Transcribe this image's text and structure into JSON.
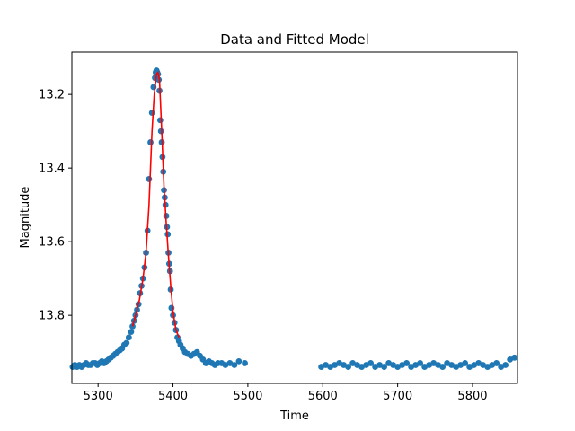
{
  "chart_data": {
    "type": "scatter",
    "title": "Data and Fitted Model",
    "xlabel": "Time",
    "ylabel": "Magnitude",
    "xlim": [
      5265,
      5860
    ],
    "ylim": [
      13.985,
      13.085
    ],
    "y_inverted": true,
    "grid": false,
    "legend": "none",
    "x_ticks": [
      5300,
      5400,
      5500,
      5600,
      5700,
      5800
    ],
    "y_ticks": [
      13.2,
      13.4,
      13.6,
      13.8
    ],
    "series": [
      {
        "kind": "points",
        "color": "#1f77b4",
        "x": [
          5266,
          5269,
          5272,
          5275,
          5278,
          5281,
          5284,
          5287,
          5290,
          5293,
          5296,
          5299,
          5302,
          5305,
          5308,
          5311,
          5314,
          5317,
          5320,
          5323,
          5326,
          5329,
          5332,
          5335,
          5338,
          5341,
          5344,
          5346,
          5348,
          5350,
          5352,
          5354,
          5356,
          5358,
          5360,
          5362,
          5364,
          5366,
          5368,
          5370,
          5372,
          5374,
          5376,
          5377,
          5378,
          5379,
          5380,
          5381,
          5382,
          5383,
          5384,
          5385,
          5386,
          5387,
          5388,
          5389,
          5390,
          5391,
          5392,
          5393,
          5394,
          5395,
          5396,
          5397,
          5398,
          5400,
          5402,
          5404,
          5406,
          5408,
          5410,
          5413,
          5416,
          5420,
          5424,
          5428,
          5432,
          5436,
          5440,
          5444,
          5448,
          5452,
          5456,
          5460,
          5465,
          5470,
          5476,
          5482,
          5488,
          5496,
          5598,
          5604,
          5610,
          5616,
          5622,
          5628,
          5634,
          5640,
          5646,
          5652,
          5658,
          5664,
          5670,
          5676,
          5682,
          5688,
          5694,
          5700,
          5706,
          5712,
          5718,
          5724,
          5730,
          5736,
          5742,
          5748,
          5754,
          5760,
          5766,
          5772,
          5778,
          5784,
          5790,
          5796,
          5802,
          5808,
          5814,
          5820,
          5826,
          5832,
          5838,
          5844,
          5850,
          5856
        ],
        "y": [
          13.94,
          13.935,
          13.94,
          13.935,
          13.94,
          13.935,
          13.93,
          13.935,
          13.935,
          13.93,
          13.93,
          13.935,
          13.93,
          13.925,
          13.93,
          13.925,
          13.92,
          13.915,
          13.91,
          13.905,
          13.9,
          13.895,
          13.89,
          13.88,
          13.875,
          13.86,
          13.845,
          13.83,
          13.815,
          13.8,
          13.785,
          13.77,
          13.74,
          13.72,
          13.7,
          13.67,
          13.63,
          13.57,
          13.43,
          13.33,
          13.25,
          13.18,
          13.155,
          13.14,
          13.135,
          13.14,
          13.145,
          13.16,
          13.19,
          13.27,
          13.3,
          13.33,
          13.37,
          13.41,
          13.46,
          13.48,
          13.5,
          13.53,
          13.56,
          13.58,
          13.63,
          13.66,
          13.68,
          13.73,
          13.78,
          13.8,
          13.82,
          13.84,
          13.86,
          13.87,
          13.88,
          13.89,
          13.9,
          13.905,
          13.91,
          13.905,
          13.9,
          13.91,
          13.92,
          13.93,
          13.925,
          13.93,
          13.935,
          13.93,
          13.93,
          13.935,
          13.93,
          13.935,
          13.925,
          13.93,
          13.94,
          13.935,
          13.94,
          13.935,
          13.93,
          13.935,
          13.94,
          13.93,
          13.935,
          13.94,
          13.935,
          13.93,
          13.94,
          13.935,
          13.94,
          13.93,
          13.935,
          13.94,
          13.935,
          13.93,
          13.94,
          13.935,
          13.93,
          13.94,
          13.935,
          13.93,
          13.935,
          13.94,
          13.93,
          13.935,
          13.94,
          13.935,
          13.93,
          13.94,
          13.935,
          13.93,
          13.935,
          13.94,
          13.935,
          13.93,
          13.94,
          13.935,
          13.92,
          13.915
        ]
      },
      {
        "kind": "fit-line",
        "color": "#ff0000",
        "x": [
          5346,
          5350,
          5355,
          5360,
          5364,
          5368,
          5372,
          5375,
          5378,
          5380,
          5382,
          5385,
          5388,
          5391,
          5394,
          5397,
          5400,
          5404,
          5408
        ],
        "y": [
          13.83,
          13.8,
          13.76,
          13.7,
          13.63,
          13.5,
          13.3,
          13.2,
          13.145,
          13.14,
          13.16,
          13.3,
          13.45,
          13.55,
          13.64,
          13.72,
          13.79,
          13.84,
          13.86
        ]
      }
    ]
  }
}
